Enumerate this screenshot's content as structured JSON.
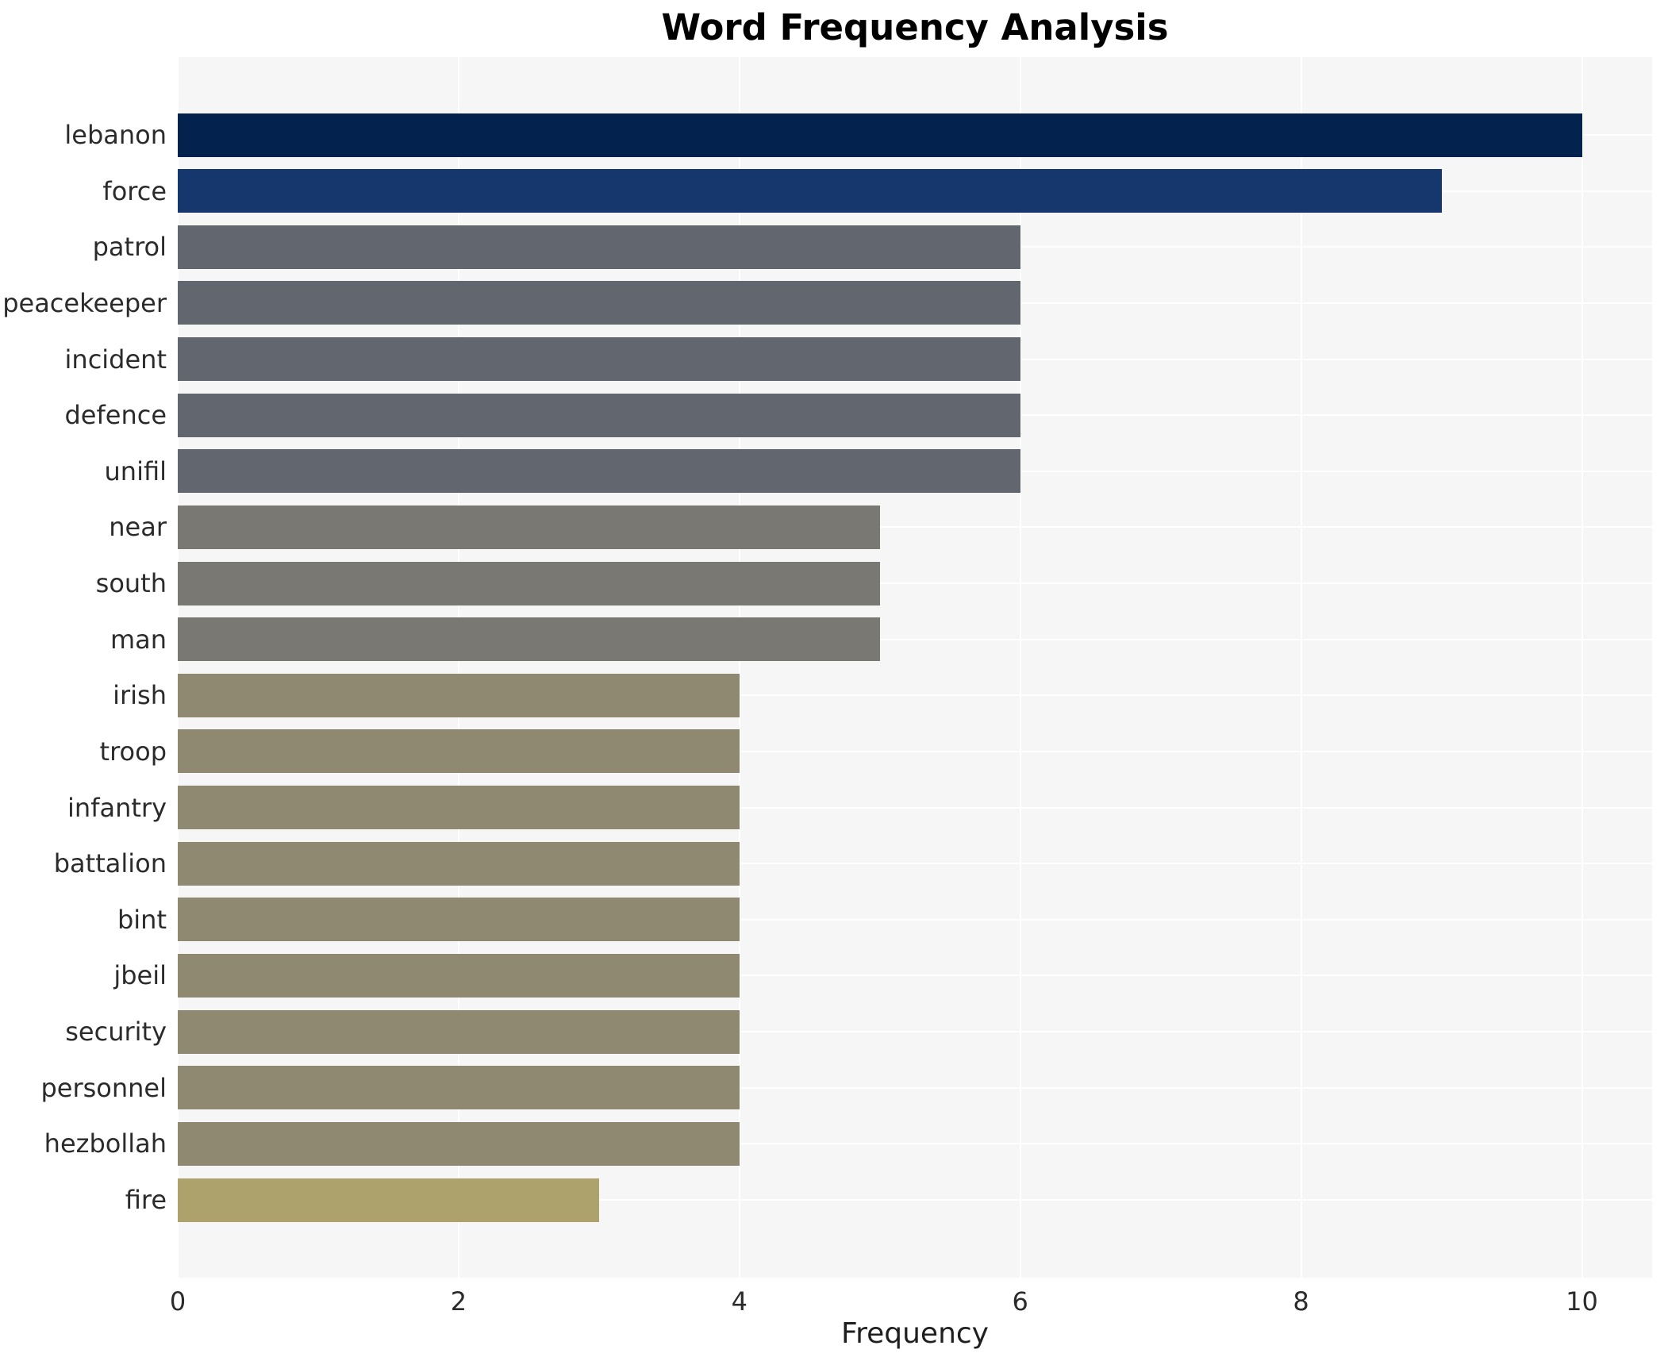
{
  "chart_data": {
    "type": "bar",
    "orientation": "horizontal",
    "title": "Word Frequency Analysis",
    "xlabel": "Frequency",
    "ylabel": "",
    "categories": [
      "lebanon",
      "force",
      "patrol",
      "peacekeeper",
      "incident",
      "defence",
      "unifil",
      "near",
      "south",
      "man",
      "irish",
      "troop",
      "infantry",
      "battalion",
      "bint",
      "jbeil",
      "security",
      "personnel",
      "hezbollah",
      "fire"
    ],
    "values": [
      10,
      9,
      6,
      6,
      6,
      6,
      6,
      5,
      5,
      5,
      4,
      4,
      4,
      4,
      4,
      4,
      4,
      4,
      4,
      3
    ],
    "xlim": [
      0,
      10.5
    ],
    "xticks": [
      0,
      2,
      4,
      6,
      8,
      10
    ],
    "grid": true,
    "legend": false,
    "colors": {
      "plot_background": "#f6f6f7",
      "grid_line": "#ffffff",
      "title_text": "#000000",
      "axis_text": "#2b2b2b",
      "value_to_bar_color": {
        "10": "#03234e",
        "9": "#16366e",
        "6": "#62666f",
        "5": "#7a7873",
        "4": "#8f8972",
        "3": "#ada16c"
      }
    }
  }
}
